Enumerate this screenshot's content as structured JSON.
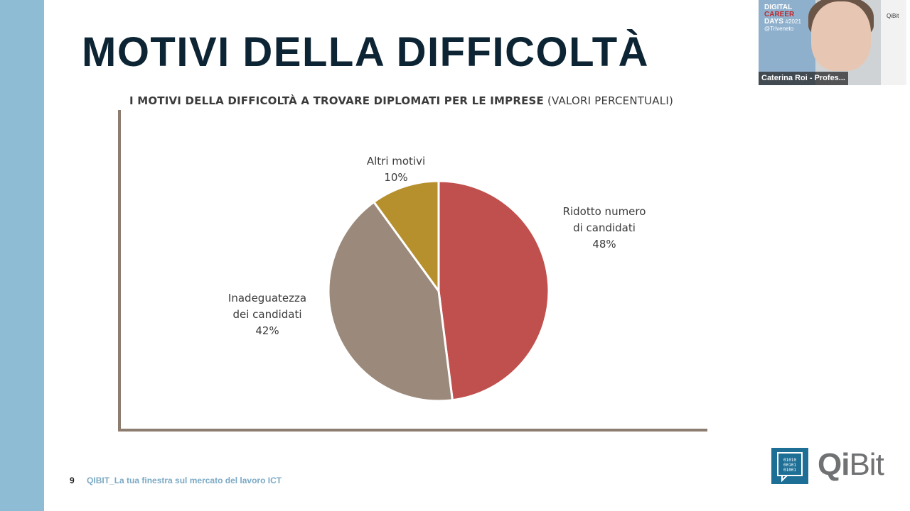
{
  "slide": {
    "title": "MOTIVI DELLA DIFFICOLTÀ",
    "chart_heading_bold": "I MOTIVI DELLA DIFFICOLTÀ A TROVARE DIPLOMATI PER LE IMPRESE",
    "chart_heading_normal": "(VALORI PERCENTUALI)",
    "page_number": "9",
    "footer_text": "QIBIT_La tua finestra sul mercato del lavoro ICT",
    "logo_text_bold": "Qi",
    "logo_text_light": "Bit",
    "logo_box_code": "01010\n00101\n01001"
  },
  "video": {
    "name_tag": "Caterina Roi - Profes...",
    "event_line1": "DIGITAL",
    "event_line2": "CAREER",
    "event_line3": "DAYS",
    "event_year": "#2021",
    "event_place": "@Triveneto",
    "mini_logo": "QiBit"
  },
  "chart_data": {
    "type": "pie",
    "title": "I MOTIVI DELLA DIFFICOLTÀ A TROVARE DIPLOMATI PER LE IMPRESE (VALORI PERCENTUALI)",
    "slices": [
      {
        "label_lines": [
          "Ridotto numero",
          "di candidati"
        ],
        "value": 48,
        "value_label": "48%",
        "color": "#c0504d"
      },
      {
        "label_lines": [
          "Inadeguatezza",
          "dei candidati"
        ],
        "value": 42,
        "value_label": "42%",
        "color": "#9b8a7c"
      },
      {
        "label_lines": [
          "Altri motivi"
        ],
        "value": 10,
        "value_label": "10%",
        "color": "#b7902e"
      }
    ],
    "start_angle_deg": 0,
    "direction": "clockwise"
  },
  "colors": {
    "left_bar": "#8dbcd4",
    "title": "#0c2433",
    "axis": "#8c7d70",
    "footer_text": "#7ba9c4",
    "logo_blue": "#1d6f96"
  }
}
